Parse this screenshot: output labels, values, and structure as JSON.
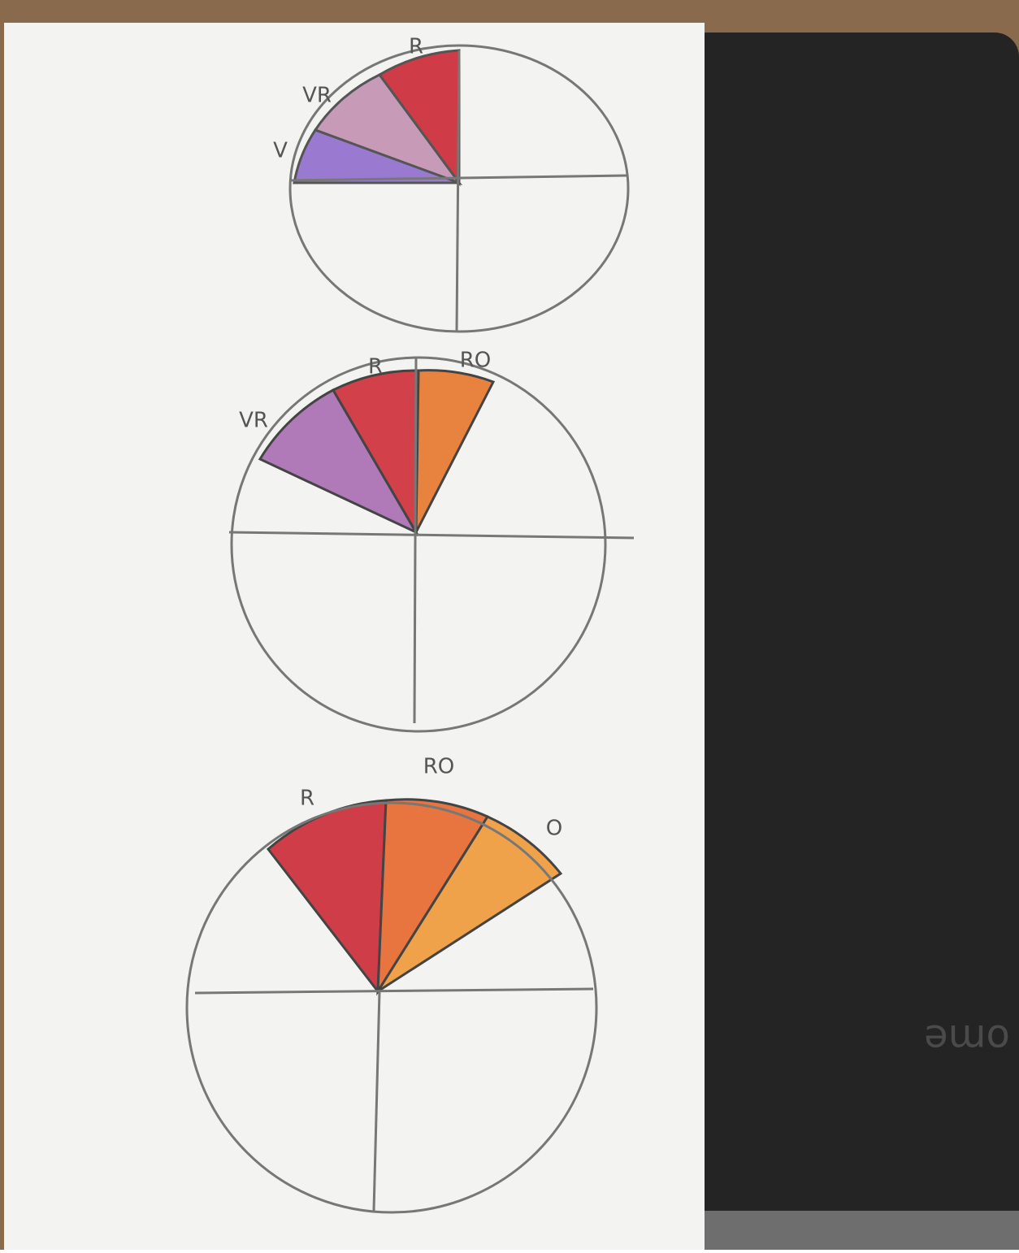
{
  "sketches": [
    {
      "labels": [
        "R",
        "VR",
        "V"
      ]
    },
    {
      "labels": [
        "VR",
        "R",
        "RO"
      ]
    },
    {
      "labels": [
        "R",
        "RO",
        "O"
      ]
    }
  ],
  "case_text": "ome"
}
